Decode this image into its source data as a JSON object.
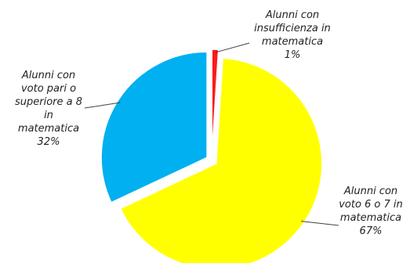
{
  "chart_data": {
    "type": "pie",
    "title": "",
    "slices": [
      {
        "label_lines": [
          "Alunni con",
          "insufficienza in",
          "matematica"
        ],
        "percent_label": "1%",
        "value": 1,
        "color": "#ff1a1a"
      },
      {
        "label_lines": [
          "Alunni con",
          "voto 6 o 7 in",
          "matematica"
        ],
        "percent_label": "67%",
        "value": 67,
        "color": "#ffff00"
      },
      {
        "label_lines": [
          "Alunni con",
          "voto pari o",
          "superiore a 8",
          "in",
          "matematica"
        ],
        "percent_label": "32%",
        "value": 32,
        "color": "#00b0f0"
      }
    ],
    "legend": "none",
    "exploded": true
  }
}
